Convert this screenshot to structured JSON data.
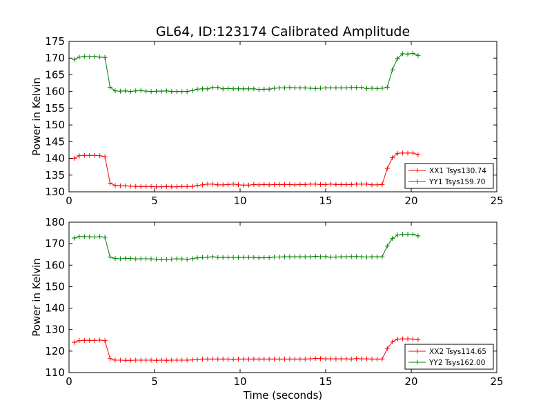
{
  "figure": {
    "title": "GL64, ID:123174 Calibrated Amplitude",
    "xlabel": "Time (seconds)"
  },
  "chart_data": [
    {
      "type": "line",
      "title": "GL64, ID:123174 Calibrated Amplitude",
      "xlabel": "",
      "ylabel": "Power in Kelvin",
      "xlim": [
        0,
        25
      ],
      "ylim": [
        130,
        175
      ],
      "xticks": [
        0,
        5,
        10,
        15,
        20,
        25
      ],
      "yticks": [
        130,
        135,
        140,
        145,
        150,
        155,
        160,
        165,
        170,
        175
      ],
      "grid": false,
      "legend_position": "lower-right",
      "x": [
        0.3,
        0.6,
        0.9,
        1.2,
        1.5,
        1.8,
        2.1,
        2.4,
        2.7,
        3.0,
        3.3,
        3.6,
        3.9,
        4.2,
        4.5,
        4.8,
        5.1,
        5.4,
        5.7,
        6.0,
        6.3,
        6.6,
        6.9,
        7.2,
        7.5,
        7.8,
        8.1,
        8.4,
        8.7,
        9.0,
        9.3,
        9.6,
        9.9,
        10.2,
        10.5,
        10.8,
        11.1,
        11.4,
        11.7,
        12.0,
        12.3,
        12.6,
        12.9,
        13.2,
        13.5,
        13.8,
        14.1,
        14.4,
        14.7,
        15.0,
        15.3,
        15.6,
        15.9,
        16.2,
        16.5,
        16.8,
        17.1,
        17.4,
        17.7,
        18.0,
        18.3,
        18.6,
        18.9,
        19.2,
        19.5,
        19.8,
        20.1,
        20.4
      ],
      "series": [
        {
          "name": "XX1 Tsys130.74",
          "color": "#ff0000",
          "values": [
            140.0,
            140.8,
            140.9,
            140.9,
            140.9,
            140.8,
            140.5,
            132.6,
            131.9,
            131.8,
            131.8,
            131.7,
            131.6,
            131.6,
            131.6,
            131.6,
            131.5,
            131.5,
            131.6,
            131.5,
            131.5,
            131.6,
            131.6,
            131.6,
            131.9,
            132.1,
            132.3,
            132.3,
            132.1,
            132.1,
            132.2,
            132.3,
            132.1,
            132.0,
            132.0,
            132.2,
            132.1,
            132.2,
            132.1,
            132.2,
            132.2,
            132.2,
            132.2,
            132.1,
            132.2,
            132.2,
            132.3,
            132.3,
            132.2,
            132.2,
            132.3,
            132.2,
            132.2,
            132.2,
            132.2,
            132.3,
            132.3,
            132.3,
            132.1,
            132.1,
            132.2,
            137.0,
            140.2,
            141.5,
            141.6,
            141.6,
            141.6,
            141.1
          ]
        },
        {
          "name": "YY1 Tsys159.70",
          "color": "#008000",
          "values": [
            169.6,
            170.3,
            170.5,
            170.4,
            170.5,
            170.3,
            170.2,
            161.3,
            160.2,
            160.1,
            160.2,
            160.0,
            160.2,
            160.3,
            160.1,
            160.0,
            160.1,
            160.1,
            160.2,
            160.0,
            160.0,
            160.0,
            160.0,
            160.3,
            160.7,
            160.8,
            160.8,
            161.2,
            161.2,
            160.8,
            160.9,
            160.8,
            160.8,
            160.8,
            160.8,
            160.8,
            160.6,
            160.7,
            160.7,
            161.0,
            161.1,
            161.1,
            161.2,
            161.1,
            161.1,
            161.1,
            161.0,
            160.9,
            161.0,
            161.1,
            161.1,
            161.1,
            161.1,
            161.1,
            161.2,
            161.2,
            161.2,
            160.9,
            161.0,
            160.9,
            161.0,
            161.3,
            166.5,
            169.9,
            171.3,
            171.2,
            171.4,
            170.8
          ]
        }
      ],
      "legend_series_order": [
        0,
        1
      ]
    },
    {
      "type": "line",
      "title": "",
      "xlabel": "Time (seconds)",
      "ylabel": "Power in Kelvin",
      "xlim": [
        0,
        25
      ],
      "ylim": [
        110,
        180
      ],
      "xticks": [
        0,
        5,
        10,
        15,
        20,
        25
      ],
      "yticks": [
        110,
        120,
        130,
        140,
        150,
        160,
        170,
        180
      ],
      "grid": false,
      "legend_position": "lower-right",
      "x": [
        0.3,
        0.6,
        0.9,
        1.2,
        1.5,
        1.8,
        2.1,
        2.4,
        2.7,
        3.0,
        3.3,
        3.6,
        3.9,
        4.2,
        4.5,
        4.8,
        5.1,
        5.4,
        5.7,
        6.0,
        6.3,
        6.6,
        6.9,
        7.2,
        7.5,
        7.8,
        8.1,
        8.4,
        8.7,
        9.0,
        9.3,
        9.6,
        9.9,
        10.2,
        10.5,
        10.8,
        11.1,
        11.4,
        11.7,
        12.0,
        12.3,
        12.6,
        12.9,
        13.2,
        13.5,
        13.8,
        14.1,
        14.4,
        14.7,
        15.0,
        15.3,
        15.6,
        15.9,
        16.2,
        16.5,
        16.8,
        17.1,
        17.4,
        17.7,
        18.0,
        18.3,
        18.6,
        18.9,
        19.2,
        19.5,
        19.8,
        20.1,
        20.4
      ],
      "series": [
        {
          "name": "XX2 Tsys114.65",
          "color": "#ff0000",
          "values": [
            124.1,
            124.9,
            125.0,
            125.0,
            125.0,
            125.1,
            124.9,
            116.5,
            115.8,
            115.8,
            115.7,
            115.7,
            115.8,
            115.8,
            115.8,
            115.8,
            115.7,
            115.8,
            115.7,
            115.8,
            115.8,
            115.8,
            115.8,
            115.9,
            116.1,
            116.3,
            116.3,
            116.3,
            116.3,
            116.3,
            116.3,
            116.2,
            116.3,
            116.3,
            116.3,
            116.3,
            116.3,
            116.3,
            116.3,
            116.3,
            116.3,
            116.3,
            116.3,
            116.3,
            116.3,
            116.3,
            116.4,
            116.6,
            116.5,
            116.4,
            116.4,
            116.4,
            116.4,
            116.4,
            116.3,
            116.5,
            116.4,
            116.4,
            116.3,
            116.3,
            116.3,
            121.2,
            124.3,
            125.6,
            125.7,
            125.7,
            125.6,
            125.3
          ]
        },
        {
          "name": "YY2 Tsys162.00",
          "color": "#008000",
          "values": [
            172.6,
            173.3,
            173.3,
            173.2,
            173.1,
            173.3,
            173.0,
            163.8,
            163.1,
            163.0,
            163.2,
            163.1,
            162.9,
            163.0,
            163.0,
            162.9,
            162.8,
            162.6,
            162.7,
            162.8,
            163.0,
            162.9,
            162.7,
            163.0,
            163.4,
            163.6,
            163.7,
            163.9,
            163.6,
            163.6,
            163.6,
            163.6,
            163.6,
            163.6,
            163.6,
            163.6,
            163.4,
            163.5,
            163.5,
            163.8,
            163.8,
            163.9,
            163.9,
            163.9,
            163.9,
            163.9,
            163.9,
            164.1,
            163.9,
            164.0,
            163.7,
            163.8,
            163.9,
            163.9,
            164.0,
            164.0,
            163.9,
            163.8,
            163.9,
            163.9,
            163.9,
            168.9,
            172.4,
            174.0,
            174.3,
            174.4,
            174.4,
            173.6
          ]
        }
      ],
      "legend_series_order": [
        0,
        1
      ]
    }
  ]
}
